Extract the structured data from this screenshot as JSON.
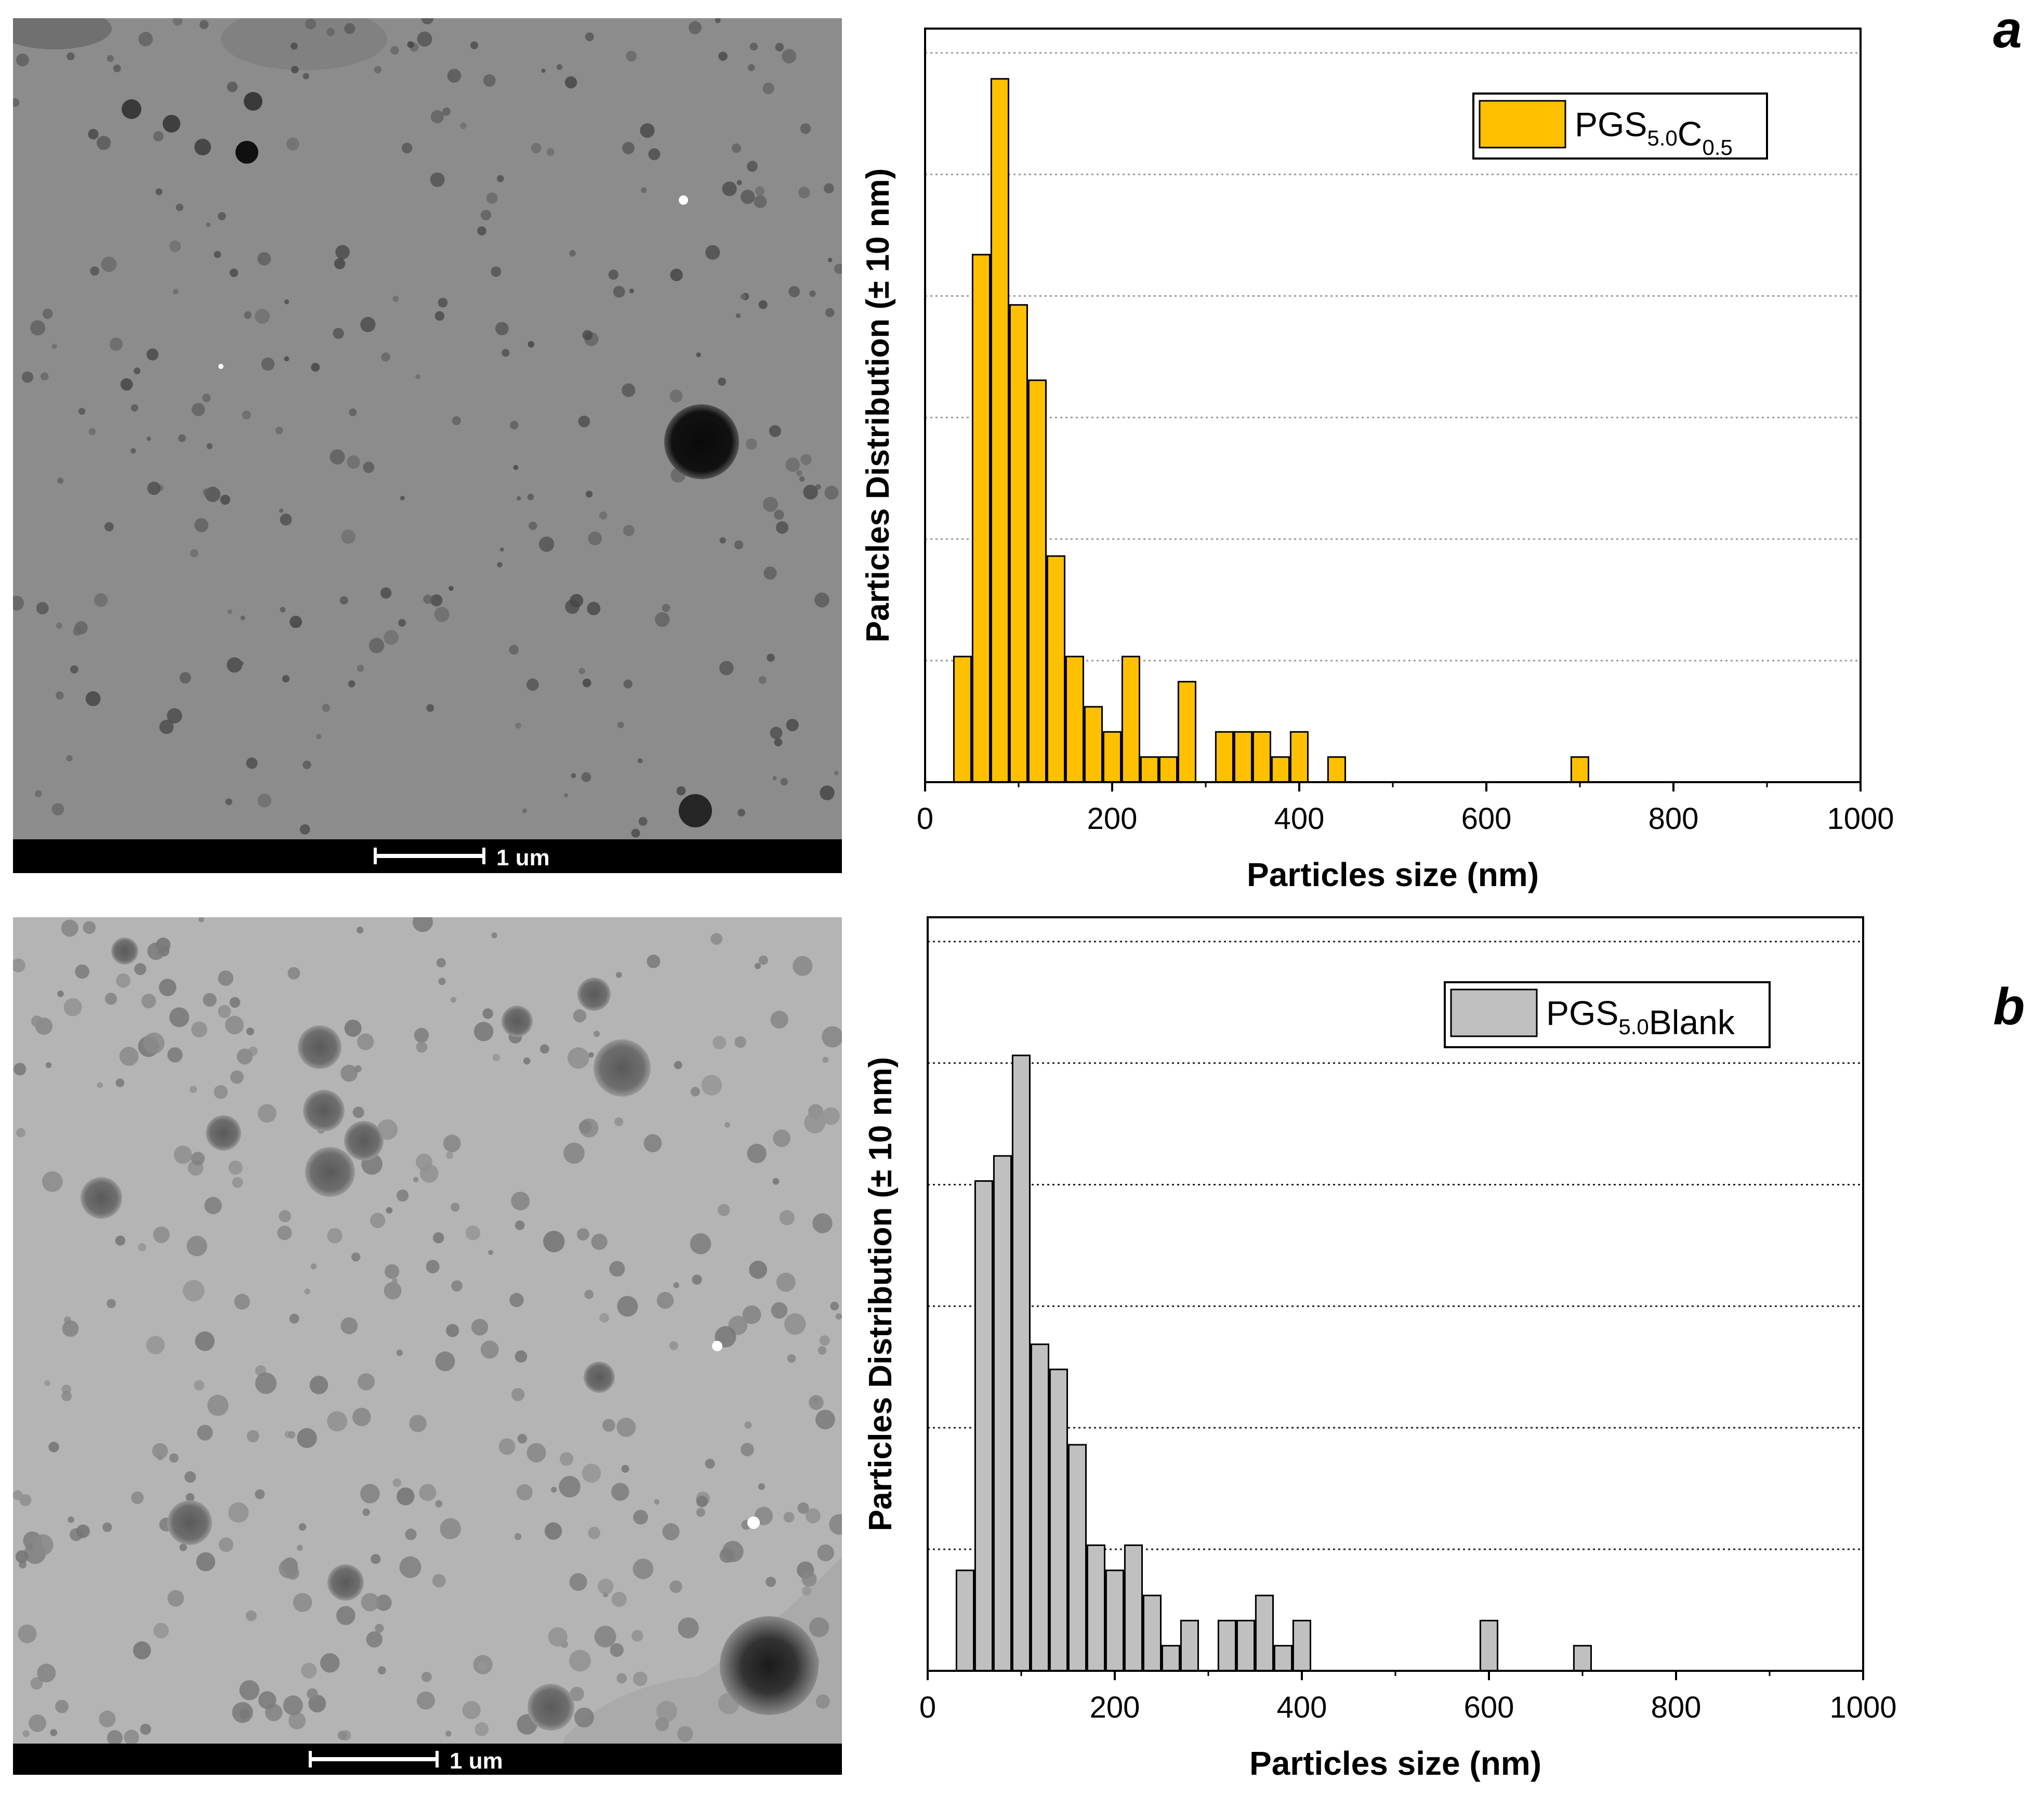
{
  "panels": [
    {
      "letter": "a",
      "scale_bar_label": "1 um",
      "chart_data": {
        "type": "bar",
        "xlabel": "Particles size (nm)",
        "ylabel": "Particles Distribution (± 10 nm)",
        "xlim": [
          0,
          1000
        ],
        "xticks": [
          0,
          200,
          400,
          600,
          800,
          1000
        ],
        "y_tick_labels_shown": false,
        "ylim": [
          0,
          30
        ],
        "grid": "horizontal dotted",
        "legend_placement": "top-right",
        "bar_color": "#FFC000",
        "series": [
          {
            "legend": {
              "base": "PGS",
              "sub1": "5.0",
              "mid": "C",
              "sub2": "0.5"
            },
            "x": [
              40,
              60,
              80,
              100,
              120,
              140,
              160,
              180,
              200,
              220,
              240,
              260,
              280,
              320,
              340,
              360,
              380,
              400,
              440,
              700
            ],
            "values": [
              5,
              21,
              28,
              19,
              16,
              9,
              5,
              3,
              2,
              5,
              1,
              1,
              4,
              2,
              2,
              2,
              1,
              2,
              1,
              1
            ]
          }
        ]
      }
    },
    {
      "letter": "b",
      "scale_bar_label": "1 um",
      "chart_data": {
        "type": "bar",
        "xlabel": "Particles size (nm)",
        "ylabel": "Particles Distribution (± 10 nm)",
        "xlim": [
          0,
          1000
        ],
        "xticks": [
          0,
          200,
          400,
          600,
          800,
          1000
        ],
        "y_tick_labels_shown": false,
        "ylim": [
          0,
          30
        ],
        "grid": "horizontal dotted",
        "legend_placement": "top-right",
        "bar_color": "#C0C0C0",
        "series": [
          {
            "legend": {
              "base": "PGS",
              "sub1": "5.0",
              "mid": "Blank",
              "sub2": ""
            },
            "x": [
              40,
              60,
              80,
              100,
              120,
              140,
              160,
              180,
              200,
              220,
              240,
              260,
              280,
              320,
              340,
              360,
              380,
              400,
              600,
              700
            ],
            "values": [
              4,
              19.5,
              20.5,
              24.5,
              13,
              12,
              9,
              5,
              4,
              5,
              3,
              1,
              2,
              2,
              2,
              3,
              1,
              2,
              2,
              1
            ]
          }
        ]
      }
    }
  ]
}
